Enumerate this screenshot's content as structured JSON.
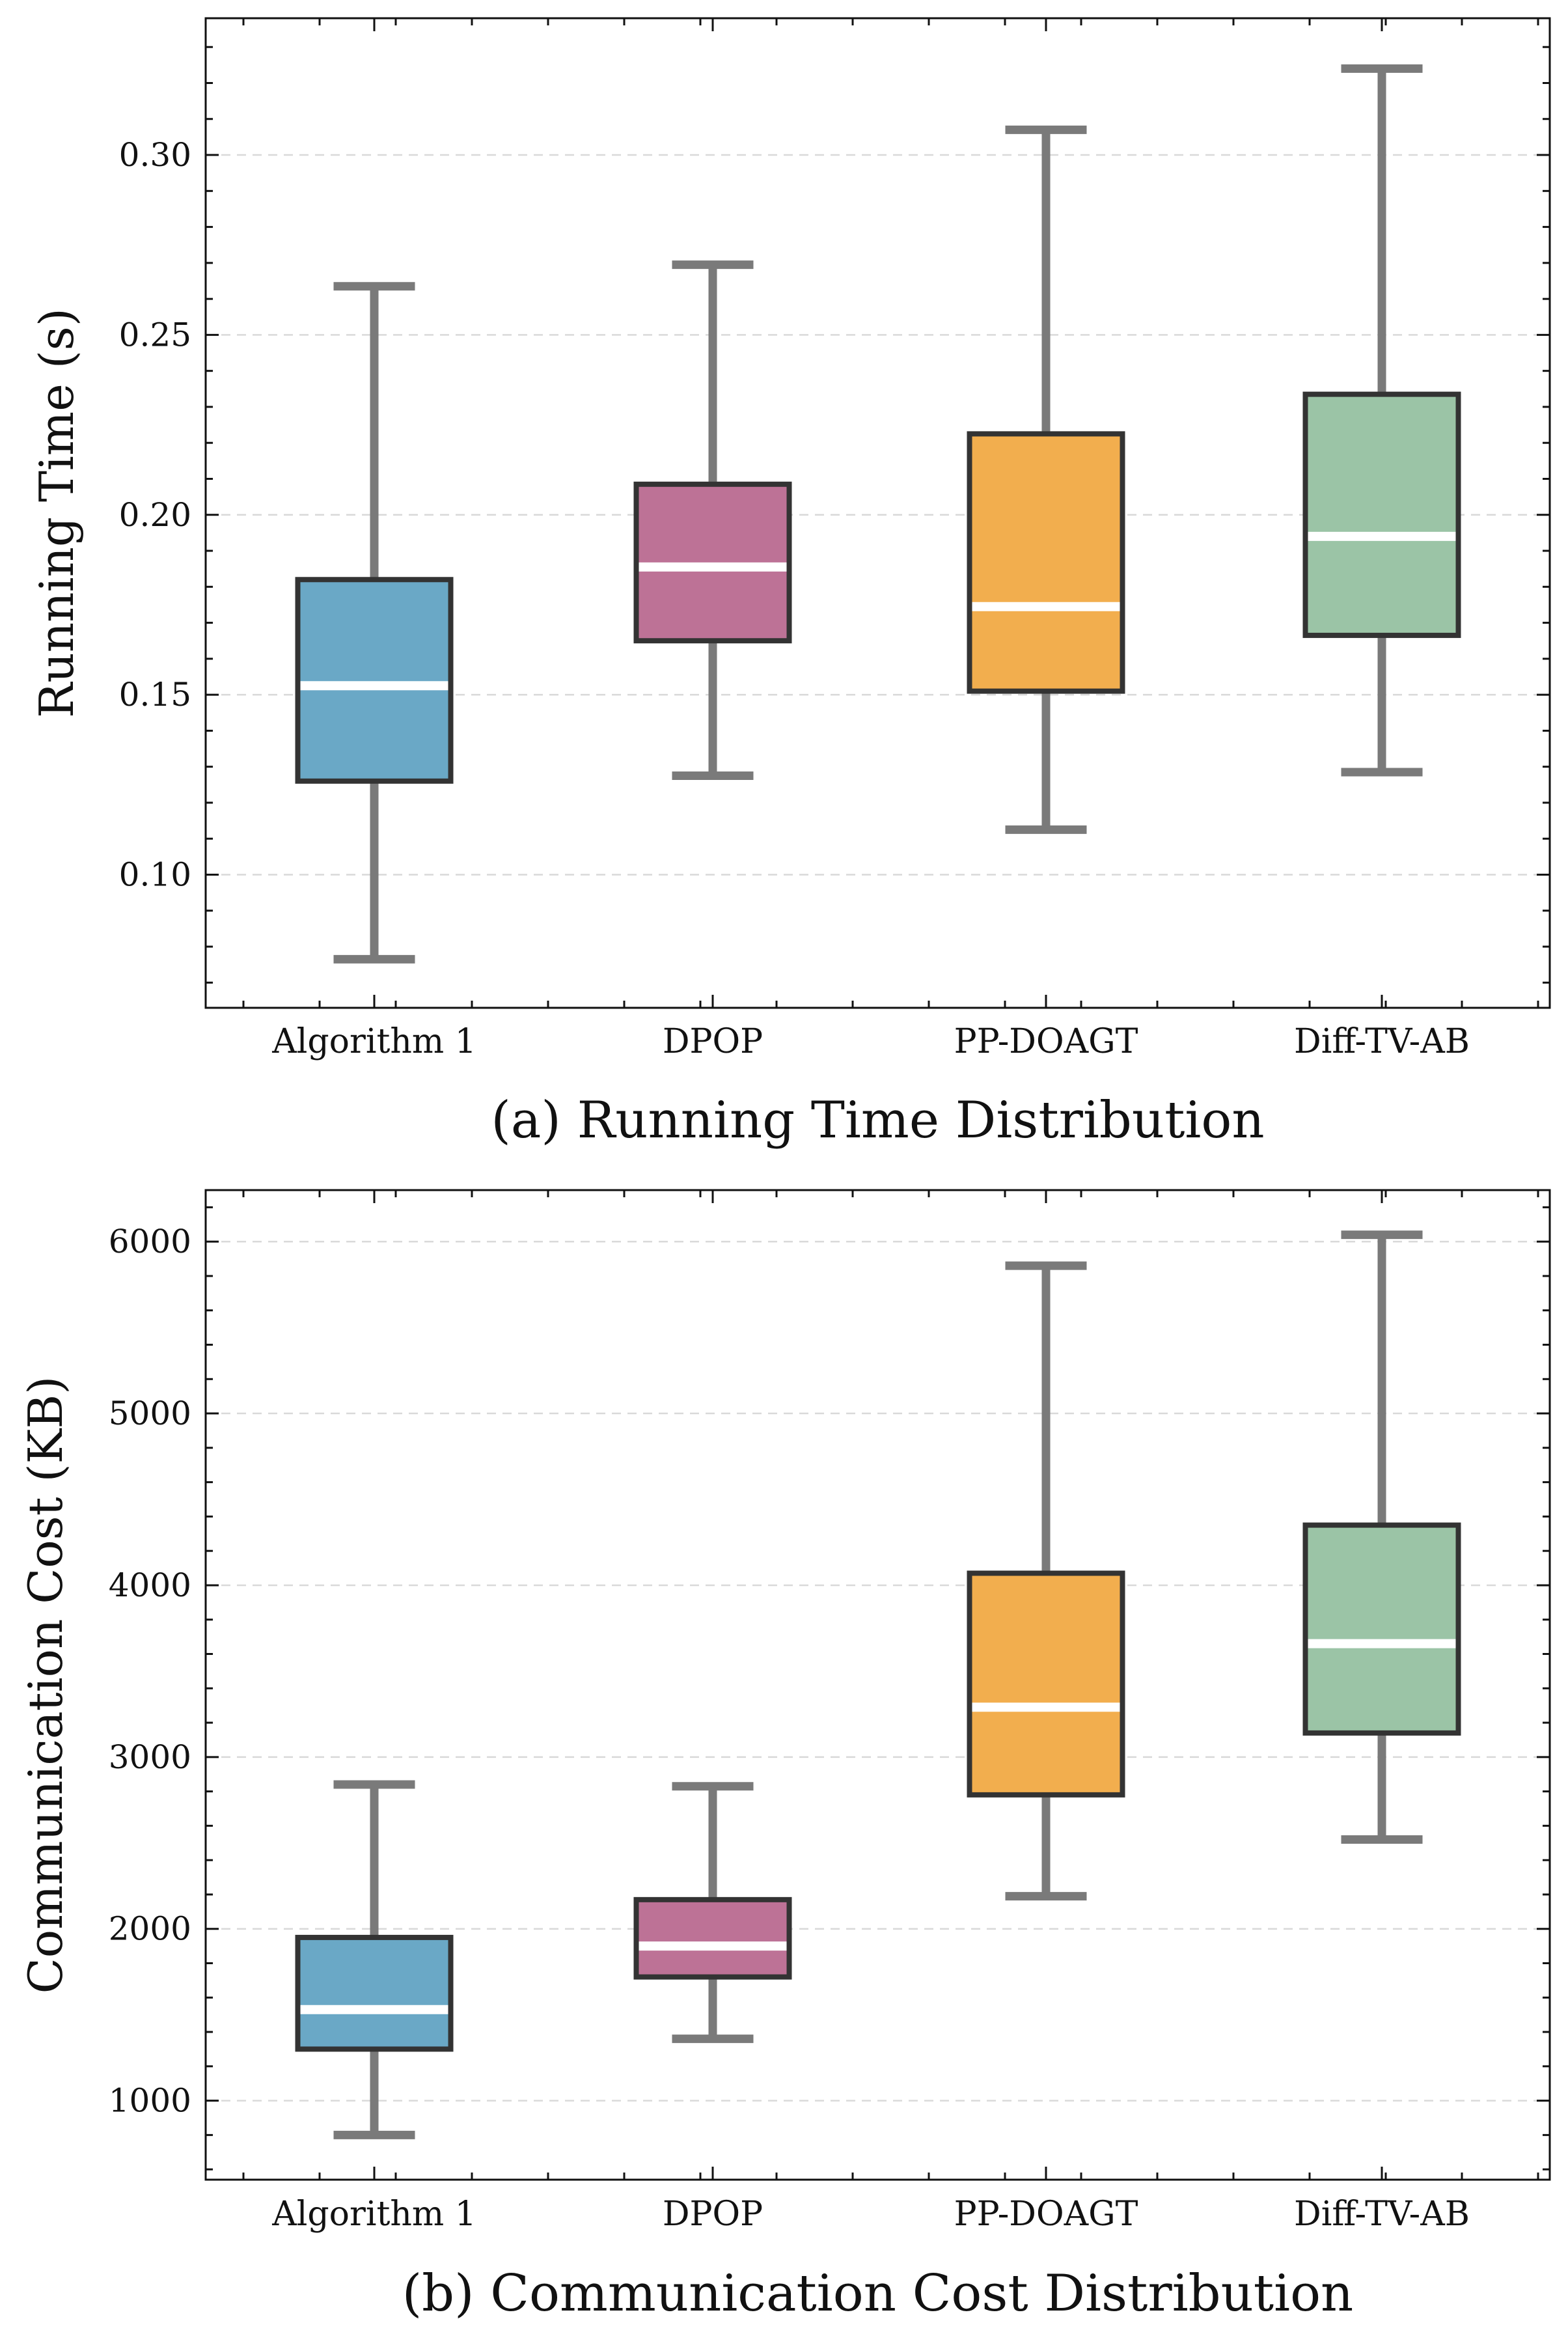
{
  "chart_data": [
    {
      "type": "box",
      "title": "(a) Running Time Distribution",
      "xlabel": "",
      "ylabel": "Running Time (s)",
      "ylim": [
        0.063,
        0.338
      ],
      "yticks": [
        0.1,
        0.15,
        0.2,
        0.25,
        0.3
      ],
      "ytick_labels": [
        "0.10",
        "0.15",
        "0.20",
        "0.25",
        "0.30"
      ],
      "grid": true,
      "categories": [
        "Algorithm 1",
        "DPOP",
        "PP-DOAGT",
        "Diff-TV-AB"
      ],
      "colors": [
        "#6aa8c6",
        "#bd7296",
        "#f2ae4e",
        "#9bc4a6"
      ],
      "boxes": [
        {
          "category": "Algorithm 1",
          "whislo": 0.0765,
          "q1": 0.126,
          "med": 0.1525,
          "q3": 0.182,
          "whishi": 0.2635
        },
        {
          "category": "DPOP",
          "whislo": 0.1275,
          "q1": 0.165,
          "med": 0.1855,
          "q3": 0.2085,
          "whishi": 0.2695
        },
        {
          "category": "PP-DOAGT",
          "whislo": 0.1125,
          "q1": 0.151,
          "med": 0.1745,
          "q3": 0.2225,
          "whishi": 0.307
        },
        {
          "category": "Diff-TV-AB",
          "whislo": 0.1285,
          "q1": 0.1665,
          "med": 0.194,
          "q3": 0.2335,
          "whishi": 0.324
        }
      ]
    },
    {
      "type": "box",
      "title": "(b) Communication Cost Distribution",
      "xlabel": "",
      "ylabel": "Communication Cost (KB)",
      "ylim": [
        540,
        6300
      ],
      "yticks": [
        1000,
        2000,
        3000,
        4000,
        5000,
        6000
      ],
      "ytick_labels": [
        "1000",
        "2000",
        "3000",
        "4000",
        "5000",
        "6000"
      ],
      "grid": true,
      "categories": [
        "Algorithm 1",
        "DPOP",
        "PP-DOAGT",
        "Diff-TV-AB"
      ],
      "colors": [
        "#6aa8c6",
        "#bd7296",
        "#f2ae4e",
        "#9bc4a6"
      ],
      "boxes": [
        {
          "category": "Algorithm 1",
          "whislo": 800,
          "q1": 1300,
          "med": 1530,
          "q3": 1950,
          "whishi": 2840
        },
        {
          "category": "DPOP",
          "whislo": 1360,
          "q1": 1720,
          "med": 1900,
          "q3": 2170,
          "whishi": 2830
        },
        {
          "category": "PP-DOAGT",
          "whislo": 2190,
          "q1": 2780,
          "med": 3290,
          "q3": 4070,
          "whishi": 5860
        },
        {
          "category": "Diff-TV-AB",
          "whislo": 2520,
          "q1": 3140,
          "med": 3660,
          "q3": 4350,
          "whishi": 6040
        }
      ]
    }
  ]
}
